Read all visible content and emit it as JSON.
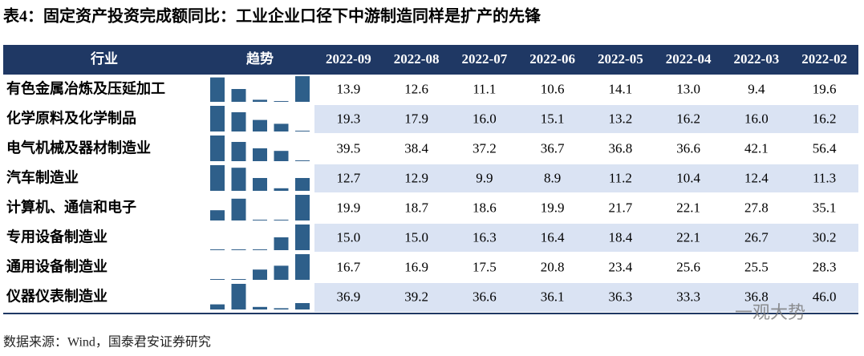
{
  "title": "表4：固定资产投资完成额同比：工业企业口径下中游制造同样是扩产的先锋",
  "table": {
    "headers": [
      "行业",
      "趋势",
      "2022-09",
      "2022-08",
      "2022-07",
      "2022-06",
      "2022-05",
      "2022-04",
      "2022-03",
      "2022-02"
    ],
    "rows": [
      {
        "industry": "有色金属冶炼及压延加工",
        "trend": [
          95,
          50,
          8,
          3,
          100
        ],
        "values": [
          "13.9",
          "12.6",
          "11.1",
          "10.6",
          "14.1",
          "13.0",
          "9.4",
          "19.6"
        ]
      },
      {
        "industry": "化学原料及化学制品",
        "trend": [
          100,
          75,
          45,
          30,
          3
        ],
        "values": [
          "19.3",
          "17.9",
          "16.0",
          "15.1",
          "13.2",
          "16.2",
          "16.0",
          "16.2"
        ]
      },
      {
        "industry": "电气机械及器材制造业",
        "trend": [
          100,
          75,
          50,
          40,
          3
        ],
        "values": [
          "39.5",
          "38.4",
          "37.2",
          "36.7",
          "36.8",
          "36.6",
          "42.1",
          "56.4"
        ]
      },
      {
        "industry": "汽车制造业",
        "trend": [
          100,
          90,
          50,
          10,
          50
        ],
        "values": [
          "12.7",
          "12.9",
          "9.9",
          "8.9",
          "11.2",
          "10.4",
          "12.4",
          "11.3"
        ]
      },
      {
        "industry": "计算机、通信和电子",
        "trend": [
          40,
          85,
          3,
          3,
          100
        ],
        "values": [
          "19.9",
          "18.7",
          "18.6",
          "19.9",
          "21.7",
          "22.1",
          "27.8",
          "35.1"
        ]
      },
      {
        "industry": "专用设备制造业",
        "trend": [
          3,
          3,
          3,
          50,
          100
        ],
        "values": [
          "15.0",
          "15.0",
          "16.3",
          "16.4",
          "18.4",
          "22.1",
          "26.7",
          "30.2"
        ]
      },
      {
        "industry": "通用设备制造业",
        "trend": [
          3,
          3,
          40,
          55,
          100
        ],
        "values": [
          "16.7",
          "16.9",
          "17.5",
          "20.8",
          "23.4",
          "25.6",
          "25.5",
          "28.3"
        ]
      },
      {
        "industry": "仪器仪表制造业",
        "trend": [
          20,
          100,
          10,
          5,
          25
        ],
        "values": [
          "36.9",
          "39.2",
          "36.6",
          "36.1",
          "36.3",
          "33.3",
          "36.8",
          "46.0"
        ]
      }
    ]
  },
  "source": "数据来源：Wind，国泰君安证券研究",
  "watermark": "一观大势"
}
